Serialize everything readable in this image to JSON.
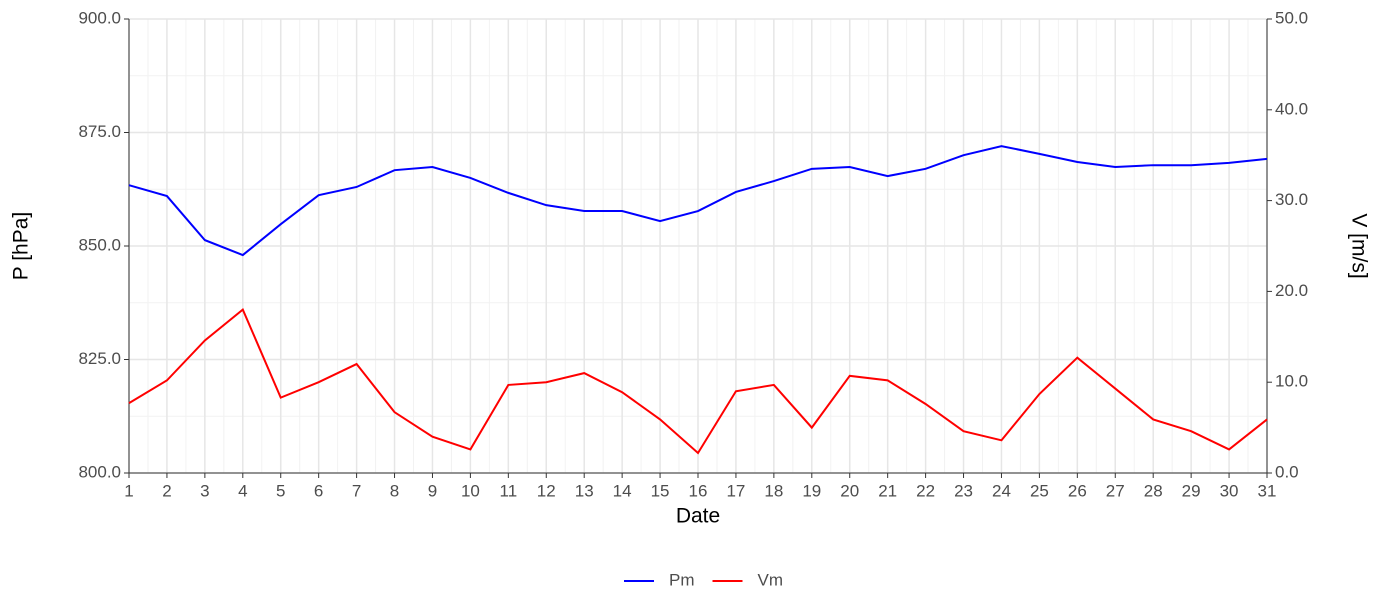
{
  "chart_data": {
    "type": "line",
    "x_label": "Date",
    "y_label": "P [hPa]",
    "y2_label": "V [m/s]",
    "x": [
      1,
      2,
      3,
      4,
      5,
      6,
      7,
      8,
      9,
      10,
      11,
      12,
      13,
      14,
      15,
      16,
      17,
      18,
      19,
      20,
      21,
      22,
      23,
      24,
      25,
      26,
      27,
      28,
      29,
      30,
      31
    ],
    "xlim": [
      1,
      31
    ],
    "xticks": [
      1,
      2,
      3,
      4,
      5,
      6,
      7,
      8,
      9,
      10,
      11,
      12,
      13,
      14,
      15,
      16,
      17,
      18,
      19,
      20,
      21,
      22,
      23,
      24,
      25,
      26,
      27,
      28,
      29,
      30,
      31
    ],
    "ylim": [
      800,
      900
    ],
    "yticks": [
      {
        "value": 800,
        "label": "800.0"
      },
      {
        "value": 825,
        "label": "825.0"
      },
      {
        "value": 850,
        "label": "850.0"
      },
      {
        "value": 875,
        "label": "875.0"
      },
      {
        "value": 900,
        "label": "900.0"
      }
    ],
    "y2lim": [
      0,
      50
    ],
    "y2ticks": [
      {
        "value": 0,
        "label": "0.0"
      },
      {
        "value": 10,
        "label": "10.0"
      },
      {
        "value": 20,
        "label": "20.0"
      },
      {
        "value": 30,
        "label": "30.0"
      },
      {
        "value": 40,
        "label": "40.0"
      },
      {
        "value": 50,
        "label": "50.0"
      }
    ],
    "grid": true,
    "legend": "bottom",
    "series": [
      {
        "name": "Pm",
        "color": "#0000ff",
        "values": [
          863.4,
          861.0,
          851.3,
          848.0,
          854.8,
          861.2,
          863.0,
          866.7,
          867.4,
          865.0,
          861.7,
          859.0,
          857.7,
          857.7,
          855.5,
          857.7,
          861.9,
          864.3,
          867.0,
          867.4,
          865.4,
          867.0,
          870.0,
          872.0,
          870.3,
          868.5,
          867.4,
          867.8,
          867.8,
          868.3,
          869.2
        ]
      },
      {
        "name": "Vm",
        "color": "#ff0000",
        "axis": "y2",
        "values": [
          7.7,
          10.2,
          14.6,
          18.0,
          8.3,
          10.0,
          12.0,
          6.7,
          4.0,
          2.6,
          9.7,
          10.0,
          11.0,
          8.9,
          5.9,
          2.2,
          9.0,
          9.7,
          5.0,
          10.7,
          10.2,
          7.6,
          4.6,
          3.6,
          8.7,
          12.7,
          9.3,
          5.9,
          4.6,
          2.6,
          5.9
        ]
      }
    ]
  }
}
